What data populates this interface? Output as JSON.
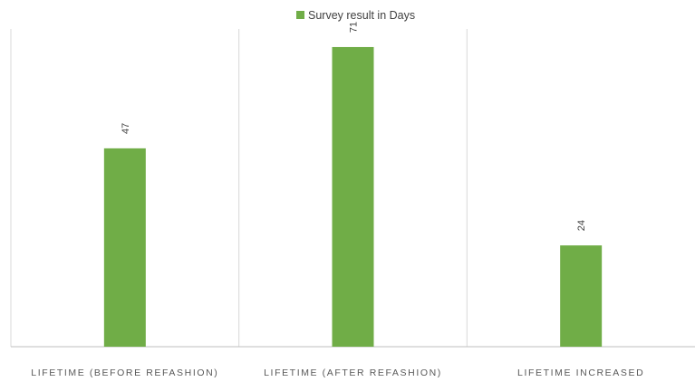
{
  "chart_data": {
    "type": "bar",
    "categories": [
      "LIFETIME (BEFORE REFASHION)",
      "LIFETIME (AFTER REFASHION)",
      "LIFETIME INCREASED"
    ],
    "series": [
      {
        "name": "Survey result in Days",
        "values": [
          47,
          71,
          24
        ],
        "color": "#70ad47"
      }
    ],
    "data_labels": [
      "47",
      "71",
      "24"
    ],
    "ylim": [
      0,
      80
    ],
    "legend_position": "top-center",
    "grid": false,
    "category_separators": true,
    "data_label_orientation": "rotated"
  }
}
